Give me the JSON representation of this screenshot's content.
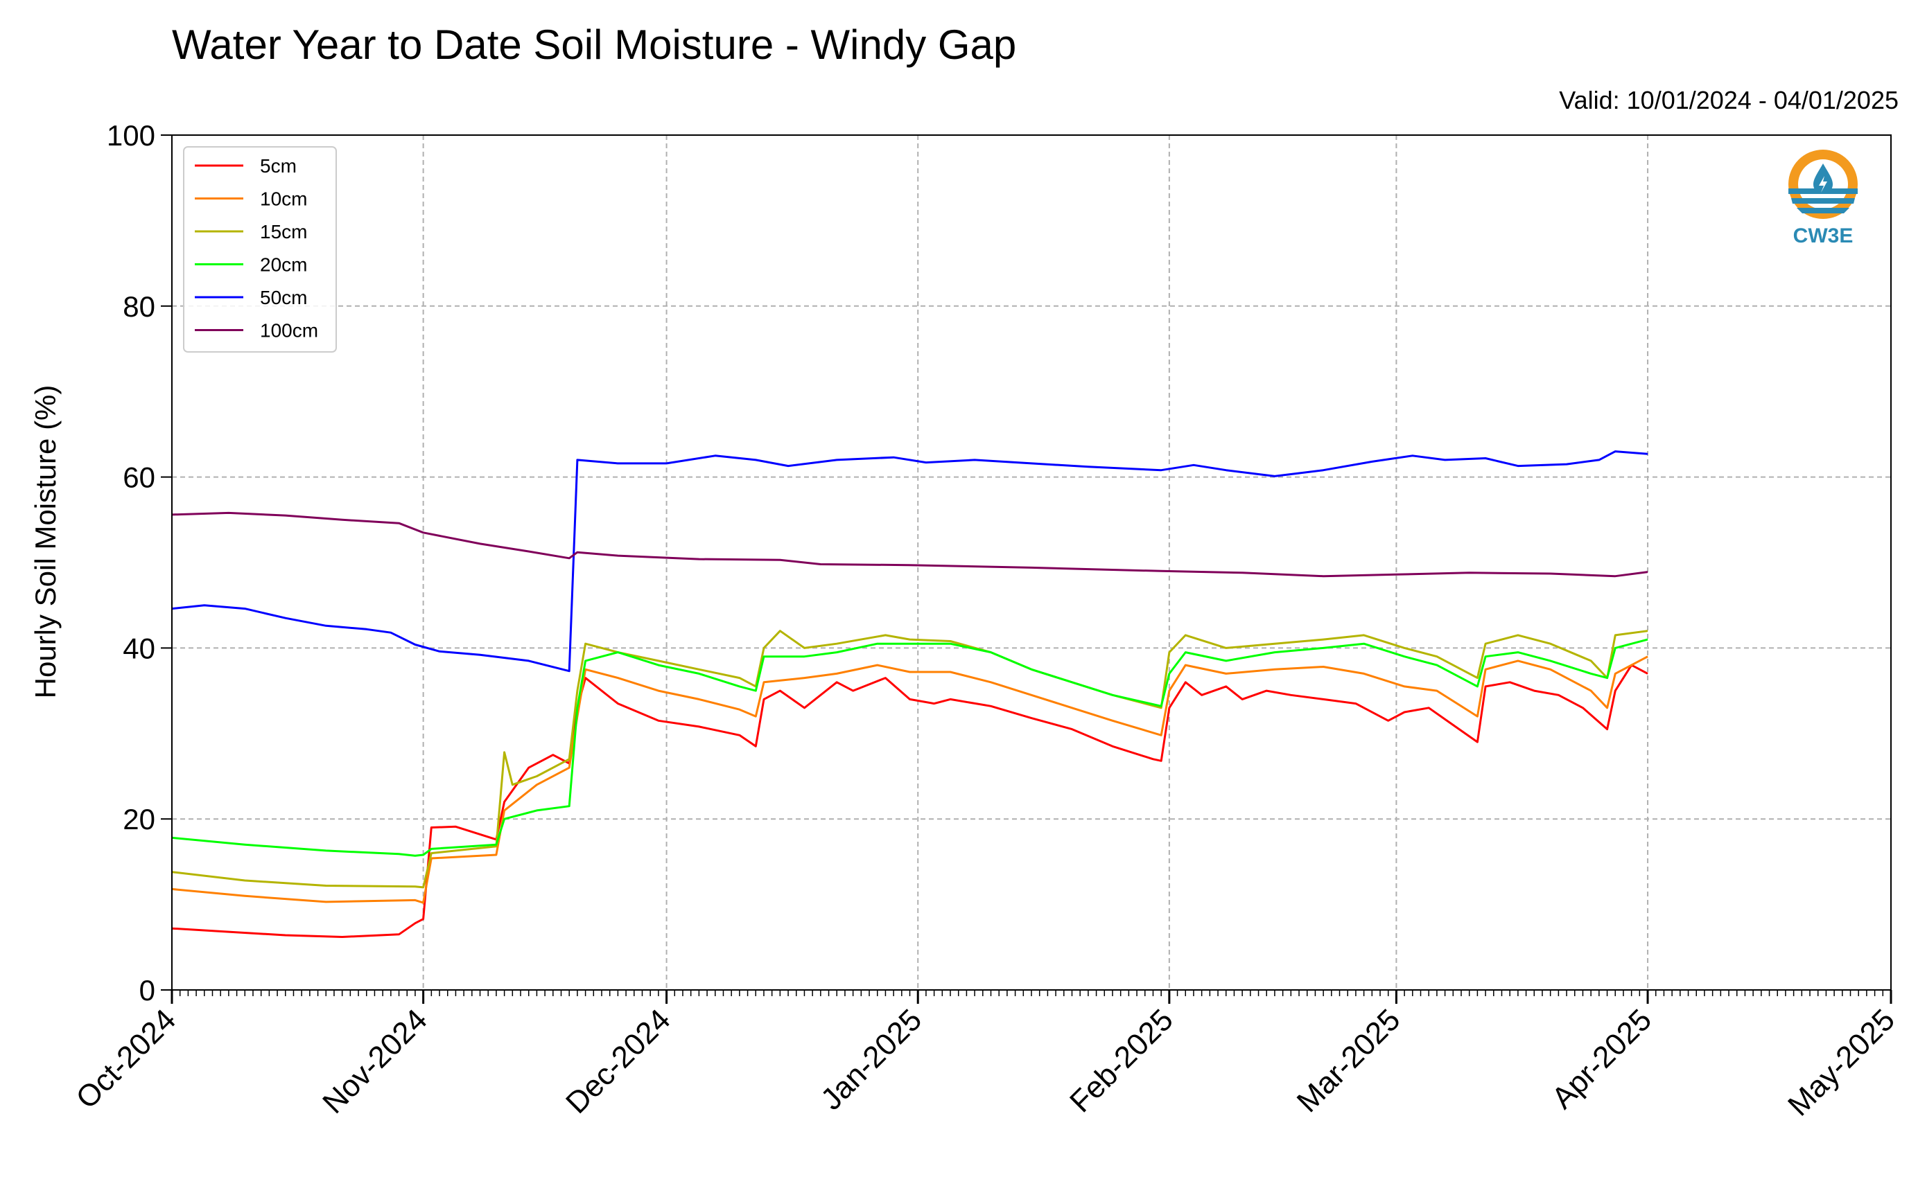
{
  "chart_data": {
    "type": "line",
    "title": "Water Year to Date Soil Moisture - Windy Gap",
    "subtitle": "Valid: 10/01/2024 - 04/01/2025",
    "ylabel": "Hourly Soil Moisture (%)",
    "xlabel": "",
    "ylim": [
      0,
      100
    ],
    "xlim": [
      "2024-10-01",
      "2025-05-01"
    ],
    "y_ticks": [
      0,
      20,
      40,
      60,
      80,
      100
    ],
    "x_ticks": [
      {
        "date": "2024-10-01",
        "label": "Oct-2024"
      },
      {
        "date": "2024-11-01",
        "label": "Nov-2024"
      },
      {
        "date": "2024-12-01",
        "label": "Dec-2024"
      },
      {
        "date": "2025-01-01",
        "label": "Jan-2025"
      },
      {
        "date": "2025-02-01",
        "label": "Feb-2025"
      },
      {
        "date": "2025-03-01",
        "label": "Mar-2025"
      },
      {
        "date": "2025-04-01",
        "label": "Apr-2025"
      },
      {
        "date": "2025-05-01",
        "label": "May-2025"
      }
    ],
    "grid": true,
    "legend_position": "top-left",
    "series": [
      {
        "name": "5cm",
        "color": "#ff0000",
        "points": [
          [
            "2024-10-01",
            7.2
          ],
          [
            "2024-10-08",
            6.8
          ],
          [
            "2024-10-15",
            6.4
          ],
          [
            "2024-10-22",
            6.2
          ],
          [
            "2024-10-29",
            6.5
          ],
          [
            "2024-10-31",
            7.8
          ],
          [
            "2024-11-01",
            8.3
          ],
          [
            "2024-11-02",
            19.0
          ],
          [
            "2024-11-05",
            19.1
          ],
          [
            "2024-11-10",
            17.6
          ],
          [
            "2024-11-11",
            22.0
          ],
          [
            "2024-11-14",
            26.0
          ],
          [
            "2024-11-17",
            27.5
          ],
          [
            "2024-11-19",
            26.5
          ],
          [
            "2024-11-20",
            33.0
          ],
          [
            "2024-11-21",
            36.5
          ],
          [
            "2024-11-25",
            33.5
          ],
          [
            "2024-11-30",
            31.5
          ],
          [
            "2024-12-05",
            30.8
          ],
          [
            "2024-12-10",
            29.8
          ],
          [
            "2024-12-12",
            28.5
          ],
          [
            "2024-12-13",
            34.0
          ],
          [
            "2024-12-15",
            35.0
          ],
          [
            "2024-12-18",
            33.0
          ],
          [
            "2024-12-22",
            36.0
          ],
          [
            "2024-12-24",
            35.0
          ],
          [
            "2024-12-28",
            36.5
          ],
          [
            "2024-12-31",
            34.0
          ],
          [
            "2025-01-03",
            33.5
          ],
          [
            "2025-01-05",
            34.0
          ],
          [
            "2025-01-10",
            33.2
          ],
          [
            "2025-01-15",
            31.8
          ],
          [
            "2025-01-20",
            30.5
          ],
          [
            "2025-01-25",
            28.5
          ],
          [
            "2025-01-30",
            27.0
          ],
          [
            "2025-01-31",
            26.8
          ],
          [
            "2025-02-01",
            33.0
          ],
          [
            "2025-02-03",
            36.0
          ],
          [
            "2025-02-05",
            34.5
          ],
          [
            "2025-02-08",
            35.5
          ],
          [
            "2025-02-10",
            34.0
          ],
          [
            "2025-02-13",
            35.0
          ],
          [
            "2025-02-16",
            34.5
          ],
          [
            "2025-02-20",
            34.0
          ],
          [
            "2025-02-24",
            33.5
          ],
          [
            "2025-02-28",
            31.5
          ],
          [
            "2025-03-02",
            32.5
          ],
          [
            "2025-03-05",
            33.0
          ],
          [
            "2025-03-08",
            31.0
          ],
          [
            "2025-03-11",
            29.0
          ],
          [
            "2025-03-12",
            35.5
          ],
          [
            "2025-03-15",
            36.0
          ],
          [
            "2025-03-18",
            35.0
          ],
          [
            "2025-03-21",
            34.5
          ],
          [
            "2025-03-24",
            33.0
          ],
          [
            "2025-03-27",
            30.5
          ],
          [
            "2025-03-28",
            35.0
          ],
          [
            "2025-03-30",
            38.0
          ],
          [
            "2025-04-01",
            37.0
          ]
        ]
      },
      {
        "name": "10cm",
        "color": "#ff8000",
        "points": [
          [
            "2024-10-01",
            11.8
          ],
          [
            "2024-10-10",
            11.0
          ],
          [
            "2024-10-20",
            10.3
          ],
          [
            "2024-10-31",
            10.5
          ],
          [
            "2024-11-01",
            10.2
          ],
          [
            "2024-11-02",
            15.4
          ],
          [
            "2024-11-10",
            15.8
          ],
          [
            "2024-11-11",
            21.0
          ],
          [
            "2024-11-15",
            24.0
          ],
          [
            "2024-11-19",
            26.0
          ],
          [
            "2024-11-20",
            32.0
          ],
          [
            "2024-11-21",
            37.5
          ],
          [
            "2024-11-25",
            36.5
          ],
          [
            "2024-11-30",
            35.0
          ],
          [
            "2024-12-05",
            34.0
          ],
          [
            "2024-12-10",
            32.8
          ],
          [
            "2024-12-12",
            32.0
          ],
          [
            "2024-12-13",
            36.0
          ],
          [
            "2024-12-18",
            36.5
          ],
          [
            "2024-12-22",
            37.0
          ],
          [
            "2024-12-27",
            38.0
          ],
          [
            "2024-12-31",
            37.2
          ],
          [
            "2025-01-05",
            37.2
          ],
          [
            "2025-01-10",
            36.0
          ],
          [
            "2025-01-15",
            34.5
          ],
          [
            "2025-01-20",
            33.0
          ],
          [
            "2025-01-25",
            31.5
          ],
          [
            "2025-01-31",
            29.8
          ],
          [
            "2025-02-01",
            35.0
          ],
          [
            "2025-02-03",
            38.0
          ],
          [
            "2025-02-08",
            37.0
          ],
          [
            "2025-02-14",
            37.5
          ],
          [
            "2025-02-20",
            37.8
          ],
          [
            "2025-02-25",
            37.0
          ],
          [
            "2025-03-02",
            35.5
          ],
          [
            "2025-03-06",
            35.0
          ],
          [
            "2025-03-11",
            32.0
          ],
          [
            "2025-03-12",
            37.5
          ],
          [
            "2025-03-16",
            38.5
          ],
          [
            "2025-03-20",
            37.5
          ],
          [
            "2025-03-25",
            35.0
          ],
          [
            "2025-03-27",
            33.0
          ],
          [
            "2025-03-28",
            37.0
          ],
          [
            "2025-04-01",
            39.0
          ]
        ]
      },
      {
        "name": "15cm",
        "color": "#b4b400",
        "points": [
          [
            "2024-10-01",
            13.8
          ],
          [
            "2024-10-10",
            12.8
          ],
          [
            "2024-10-20",
            12.2
          ],
          [
            "2024-10-31",
            12.1
          ],
          [
            "2024-11-01",
            12.0
          ],
          [
            "2024-11-02",
            16.0
          ],
          [
            "2024-11-10",
            16.8
          ],
          [
            "2024-11-11",
            27.8
          ],
          [
            "2024-11-12",
            24.0
          ],
          [
            "2024-11-15",
            25.0
          ],
          [
            "2024-11-19",
            27.0
          ],
          [
            "2024-11-20",
            35.0
          ],
          [
            "2024-11-21",
            40.5
          ],
          [
            "2024-11-25",
            39.5
          ],
          [
            "2024-11-30",
            38.5
          ],
          [
            "2024-12-05",
            37.5
          ],
          [
            "2024-12-10",
            36.5
          ],
          [
            "2024-12-12",
            35.5
          ],
          [
            "2024-12-13",
            40.0
          ],
          [
            "2024-12-15",
            42.0
          ],
          [
            "2024-12-18",
            40.0
          ],
          [
            "2024-12-22",
            40.5
          ],
          [
            "2024-12-28",
            41.5
          ],
          [
            "2024-12-31",
            41.0
          ],
          [
            "2025-01-05",
            40.8
          ],
          [
            "2025-01-10",
            39.5
          ],
          [
            "2025-01-15",
            37.5
          ],
          [
            "2025-01-20",
            36.0
          ],
          [
            "2025-01-25",
            34.5
          ],
          [
            "2025-01-31",
            33.0
          ],
          [
            "2025-02-01",
            39.5
          ],
          [
            "2025-02-03",
            41.5
          ],
          [
            "2025-02-08",
            40.0
          ],
          [
            "2025-02-14",
            40.5
          ],
          [
            "2025-02-20",
            41.0
          ],
          [
            "2025-02-25",
            41.5
          ],
          [
            "2025-03-02",
            40.0
          ],
          [
            "2025-03-06",
            39.0
          ],
          [
            "2025-03-11",
            36.5
          ],
          [
            "2025-03-12",
            40.5
          ],
          [
            "2025-03-16",
            41.5
          ],
          [
            "2025-03-20",
            40.5
          ],
          [
            "2025-03-25",
            38.5
          ],
          [
            "2025-03-27",
            36.5
          ],
          [
            "2025-03-28",
            41.5
          ],
          [
            "2025-04-01",
            42.0
          ]
        ]
      },
      {
        "name": "20cm",
        "color": "#00ff00",
        "points": [
          [
            "2024-10-01",
            17.8
          ],
          [
            "2024-10-10",
            17.0
          ],
          [
            "2024-10-20",
            16.3
          ],
          [
            "2024-10-29",
            15.9
          ],
          [
            "2024-10-31",
            15.7
          ],
          [
            "2024-11-01",
            15.8
          ],
          [
            "2024-11-02",
            16.5
          ],
          [
            "2024-11-10",
            17.0
          ],
          [
            "2024-11-11",
            20.0
          ],
          [
            "2024-11-15",
            21.0
          ],
          [
            "2024-11-19",
            21.5
          ],
          [
            "2024-11-20",
            33.0
          ],
          [
            "2024-11-21",
            38.5
          ],
          [
            "2024-11-25",
            39.5
          ],
          [
            "2024-11-30",
            38.0
          ],
          [
            "2024-12-05",
            37.0
          ],
          [
            "2024-12-10",
            35.5
          ],
          [
            "2024-12-12",
            35.0
          ],
          [
            "2024-12-13",
            39.0
          ],
          [
            "2024-12-18",
            39.0
          ],
          [
            "2024-12-22",
            39.5
          ],
          [
            "2024-12-27",
            40.5
          ],
          [
            "2024-12-31",
            40.5
          ],
          [
            "2025-01-05",
            40.5
          ],
          [
            "2025-01-10",
            39.5
          ],
          [
            "2025-01-15",
            37.5
          ],
          [
            "2025-01-20",
            36.0
          ],
          [
            "2025-01-25",
            34.5
          ],
          [
            "2025-01-31",
            33.2
          ],
          [
            "2025-02-01",
            37.0
          ],
          [
            "2025-02-03",
            39.5
          ],
          [
            "2025-02-08",
            38.5
          ],
          [
            "2025-02-14",
            39.5
          ],
          [
            "2025-02-20",
            40.0
          ],
          [
            "2025-02-25",
            40.5
          ],
          [
            "2025-03-02",
            39.0
          ],
          [
            "2025-03-06",
            38.0
          ],
          [
            "2025-03-11",
            35.5
          ],
          [
            "2025-03-12",
            39.0
          ],
          [
            "2025-03-16",
            39.5
          ],
          [
            "2025-03-20",
            38.5
          ],
          [
            "2025-03-25",
            37.0
          ],
          [
            "2025-03-27",
            36.5
          ],
          [
            "2025-03-28",
            40.0
          ],
          [
            "2025-04-01",
            41.0
          ]
        ]
      },
      {
        "name": "50cm",
        "color": "#0000ff",
        "points": [
          [
            "2024-10-01",
            44.6
          ],
          [
            "2024-10-05",
            45.0
          ],
          [
            "2024-10-10",
            44.6
          ],
          [
            "2024-10-15",
            43.5
          ],
          [
            "2024-10-20",
            42.6
          ],
          [
            "2024-10-25",
            42.2
          ],
          [
            "2024-10-28",
            41.8
          ],
          [
            "2024-10-31",
            40.4
          ],
          [
            "2024-11-03",
            39.6
          ],
          [
            "2024-11-08",
            39.2
          ],
          [
            "2024-11-14",
            38.5
          ],
          [
            "2024-11-19",
            37.3
          ],
          [
            "2024-11-20",
            62.0
          ],
          [
            "2024-11-25",
            61.6
          ],
          [
            "2024-12-01",
            61.6
          ],
          [
            "2024-12-07",
            62.5
          ],
          [
            "2024-12-12",
            62.0
          ],
          [
            "2024-12-16",
            61.3
          ],
          [
            "2024-12-22",
            62.0
          ],
          [
            "2024-12-29",
            62.3
          ],
          [
            "2025-01-02",
            61.7
          ],
          [
            "2025-01-08",
            62.0
          ],
          [
            "2025-01-15",
            61.6
          ],
          [
            "2025-01-22",
            61.2
          ],
          [
            "2025-01-31",
            60.8
          ],
          [
            "2025-02-04",
            61.4
          ],
          [
            "2025-02-08",
            60.8
          ],
          [
            "2025-02-14",
            60.1
          ],
          [
            "2025-02-20",
            60.8
          ],
          [
            "2025-02-26",
            61.8
          ],
          [
            "2025-03-03",
            62.5
          ],
          [
            "2025-03-07",
            62.0
          ],
          [
            "2025-03-12",
            62.2
          ],
          [
            "2025-03-16",
            61.3
          ],
          [
            "2025-03-22",
            61.5
          ],
          [
            "2025-03-26",
            62.0
          ],
          [
            "2025-03-28",
            63.0
          ],
          [
            "2025-04-01",
            62.7
          ]
        ]
      },
      {
        "name": "100cm",
        "color": "#80005a",
        "points": [
          [
            "2024-10-01",
            55.6
          ],
          [
            "2024-10-08",
            55.8
          ],
          [
            "2024-10-15",
            55.5
          ],
          [
            "2024-10-22",
            55.0
          ],
          [
            "2024-10-29",
            54.6
          ],
          [
            "2024-11-01",
            53.5
          ],
          [
            "2024-11-08",
            52.2
          ],
          [
            "2024-11-14",
            51.3
          ],
          [
            "2024-11-19",
            50.5
          ],
          [
            "2024-11-20",
            51.2
          ],
          [
            "2024-11-25",
            50.8
          ],
          [
            "2024-12-05",
            50.4
          ],
          [
            "2024-12-15",
            50.3
          ],
          [
            "2024-12-20",
            49.8
          ],
          [
            "2024-12-31",
            49.7
          ],
          [
            "2025-01-15",
            49.4
          ],
          [
            "2025-01-31",
            49.0
          ],
          [
            "2025-02-10",
            48.8
          ],
          [
            "2025-02-20",
            48.4
          ],
          [
            "2025-03-01",
            48.6
          ],
          [
            "2025-03-10",
            48.8
          ],
          [
            "2025-03-20",
            48.7
          ],
          [
            "2025-03-28",
            48.4
          ],
          [
            "2025-04-01",
            48.9
          ]
        ]
      }
    ]
  }
}
